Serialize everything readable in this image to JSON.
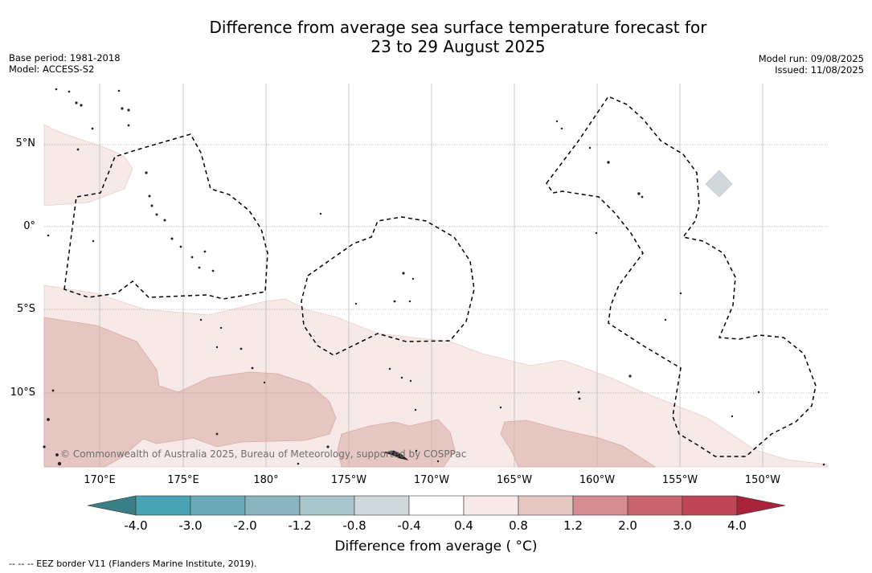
{
  "title": {
    "line1": "Difference from average sea surface temperature forecast for",
    "line2": "23 to 29 August 2025"
  },
  "meta_left": {
    "base_period": "Base period: 1981-2018",
    "model": "Model: ACCESS-S2"
  },
  "meta_right": {
    "model_run": "Model run: 09/08/2025",
    "issued": "Issued: 11/08/2025"
  },
  "latitude_labels": [
    "5°N",
    "0°",
    "5°S",
    "10°S"
  ],
  "longitude_labels": [
    "170°E",
    "175°E",
    "180°",
    "175°W",
    "170°W",
    "165°W",
    "160°W",
    "155°W",
    "150°W"
  ],
  "copyright": "© Commonwealth of Australia 2025, Bureau of Meteorology, supported by COSPPac",
  "colorbar": {
    "ticks": [
      "-4.0",
      "-3.0",
      "-2.0",
      "-1.2",
      "-0.8",
      "-0.4",
      "0.4",
      "0.8",
      "1.2",
      "2.0",
      "3.0",
      "4.0"
    ],
    "colors": [
      "#3a7f86",
      "#48a3b3",
      "#6aabb9",
      "#8ab5c0",
      "#a9c6cb",
      "#cfd8da",
      "#ffffff",
      "#f6e9e7",
      "#e6c6c1",
      "#d58c93",
      "#c9636c",
      "#bf4655",
      "#a8223a"
    ],
    "label": "Difference from average ( °C)"
  },
  "footnote": "--  --  -- EEZ border V11 (Flanders Marine Institute, 2019)."
}
